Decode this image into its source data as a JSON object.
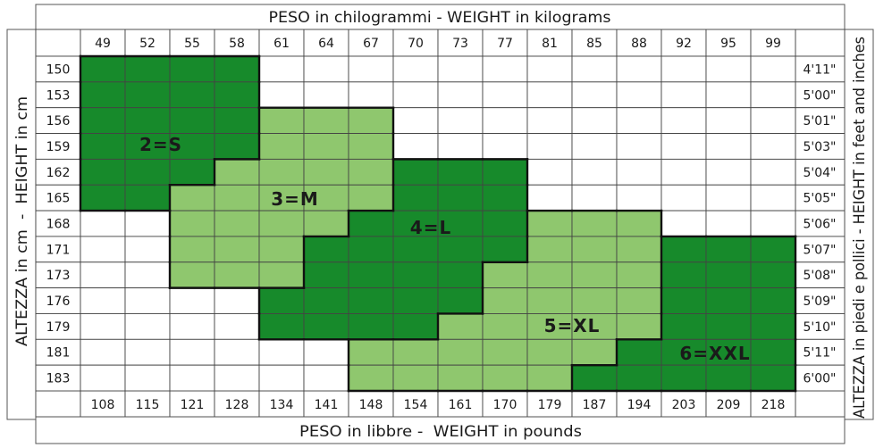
{
  "chart_data": {
    "type": "table",
    "title": "PESO in chilogrammi - WEIGHT in kilograms",
    "xlabel_bottom": "PESO in libbre -  WEIGHT in pounds",
    "ylabel_left": "ALTEZZA in cm  -  HEIGHT in cm",
    "ylabel_right": "ALTEZZA in piedi e pollici - HEIGHT in feet and inches",
    "columns_kg": [
      49,
      52,
      55,
      58,
      61,
      64,
      67,
      70,
      73,
      77,
      81,
      85,
      88,
      92,
      95,
      99
    ],
    "columns_lb": [
      108,
      115,
      121,
      128,
      134,
      141,
      148,
      154,
      161,
      170,
      179,
      187,
      194,
      203,
      209,
      218
    ],
    "rows_cm": [
      150,
      153,
      156,
      159,
      162,
      165,
      168,
      171,
      173,
      176,
      179,
      181,
      183
    ],
    "rows_ft_in": [
      "4'11\"",
      "5'00\"",
      "5'01\"",
      "5'03\"",
      "5'04\"",
      "5'05\"",
      "5'06\"",
      "5'07\"",
      "5'08\"",
      "5'09\"",
      "5'10\"",
      "5'11\"",
      "6'00\""
    ],
    "empty_color": "#ffffff",
    "sizes": [
      {
        "label": "2=S",
        "color": "#178a2b",
        "ranges": [
          {
            "cm": 150,
            "kg_from": 49,
            "kg_to": 58
          },
          {
            "cm": 153,
            "kg_from": 49,
            "kg_to": 58
          },
          {
            "cm": 156,
            "kg_from": 49,
            "kg_to": 58
          },
          {
            "cm": 159,
            "kg_from": 49,
            "kg_to": 58
          },
          {
            "cm": 162,
            "kg_from": 49,
            "kg_to": 55
          },
          {
            "cm": 165,
            "kg_from": 49,
            "kg_to": 52
          }
        ]
      },
      {
        "label": "3=M",
        "color": "#8fc76e",
        "ranges": [
          {
            "cm": 156,
            "kg_from": 61,
            "kg_to": 67
          },
          {
            "cm": 159,
            "kg_from": 61,
            "kg_to": 67
          },
          {
            "cm": 162,
            "kg_from": 58,
            "kg_to": 67
          },
          {
            "cm": 165,
            "kg_from": 55,
            "kg_to": 67
          },
          {
            "cm": 168,
            "kg_from": 55,
            "kg_to": 64
          },
          {
            "cm": 171,
            "kg_from": 55,
            "kg_to": 61
          },
          {
            "cm": 173,
            "kg_from": 55,
            "kg_to": 61
          }
        ]
      },
      {
        "label": "4=L",
        "color": "#178a2b",
        "ranges": [
          {
            "cm": 162,
            "kg_from": 70,
            "kg_to": 77
          },
          {
            "cm": 165,
            "kg_from": 70,
            "kg_to": 77
          },
          {
            "cm": 168,
            "kg_from": 67,
            "kg_to": 77
          },
          {
            "cm": 171,
            "kg_from": 64,
            "kg_to": 77
          },
          {
            "cm": 173,
            "kg_from": 64,
            "kg_to": 73
          },
          {
            "cm": 176,
            "kg_from": 61,
            "kg_to": 73
          },
          {
            "cm": 179,
            "kg_from": 61,
            "kg_to": 70
          }
        ]
      },
      {
        "label": "5=XL",
        "color": "#8fc76e",
        "ranges": [
          {
            "cm": 168,
            "kg_from": 81,
            "kg_to": 88
          },
          {
            "cm": 171,
            "kg_from": 81,
            "kg_to": 88
          },
          {
            "cm": 173,
            "kg_from": 77,
            "kg_to": 88
          },
          {
            "cm": 176,
            "kg_from": 77,
            "kg_to": 88
          },
          {
            "cm": 179,
            "kg_from": 73,
            "kg_to": 88
          },
          {
            "cm": 181,
            "kg_from": 67,
            "kg_to": 85
          },
          {
            "cm": 183,
            "kg_from": 67,
            "kg_to": 81
          }
        ]
      },
      {
        "label": "6=XXL",
        "color": "#178a2b",
        "ranges": [
          {
            "cm": 171,
            "kg_from": 92,
            "kg_to": 99
          },
          {
            "cm": 173,
            "kg_from": 92,
            "kg_to": 99
          },
          {
            "cm": 176,
            "kg_from": 92,
            "kg_to": 99
          },
          {
            "cm": 179,
            "kg_from": 92,
            "kg_to": 99
          },
          {
            "cm": 181,
            "kg_from": 88,
            "kg_to": 99
          },
          {
            "cm": 183,
            "kg_from": 85,
            "kg_to": 99
          }
        ]
      }
    ]
  }
}
